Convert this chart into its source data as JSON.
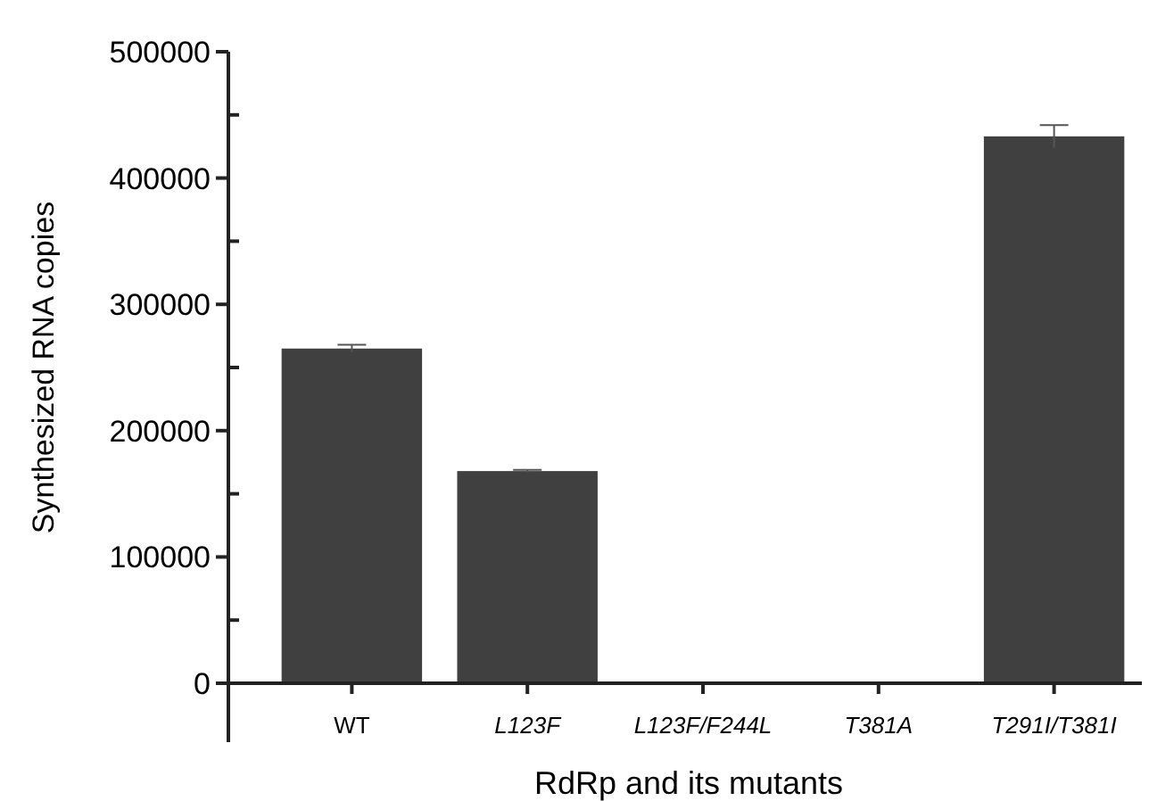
{
  "chart_data": {
    "type": "bar",
    "xlabel": "RdRp and its mutants",
    "ylabel": "Synthesized RNA copies",
    "categories": [
      "WT",
      "L123F",
      "L123F/F244L",
      "T381A",
      "T291I/T381I"
    ],
    "values": [
      265000,
      168000,
      0,
      0,
      433000
    ],
    "errors": [
      3000,
      1000,
      null,
      null,
      9000
    ],
    "color": "#404040",
    "ylim": [
      0,
      500000
    ],
    "yticks": [
      0,
      {
        "value": 50000,
        "label": null
      },
      100000,
      {
        "value": 150000,
        "label": null
      },
      200000,
      {
        "value": 250000,
        "label": null
      },
      300000,
      {
        "value": 350000,
        "label": null
      },
      400000,
      {
        "value": 450000,
        "label": null
      },
      500000
    ],
    "grid": false
  }
}
